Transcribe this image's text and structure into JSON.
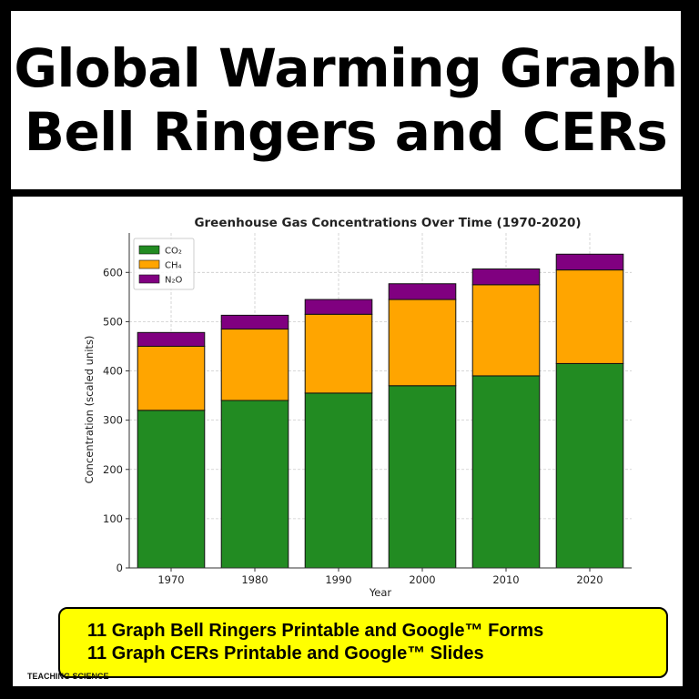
{
  "header": {
    "title_line1": "Global Warming Graph",
    "title_line2": "Bell Ringers and CERs"
  },
  "chart_data": {
    "type": "bar",
    "stacked": true,
    "title": "Greenhouse Gas Concentrations Over Time (1970-2020)",
    "xlabel": "Year",
    "ylabel": "Concentration (scaled units)",
    "categories": [
      "1970",
      "1980",
      "1990",
      "2000",
      "2010",
      "2020"
    ],
    "series": [
      {
        "name": "CO₂",
        "color": "#228b22",
        "values": [
          320,
          340,
          355,
          370,
          390,
          415
        ]
      },
      {
        "name": "CH₄",
        "color": "#ffa500",
        "values": [
          130,
          145,
          160,
          175,
          185,
          190
        ]
      },
      {
        "name": "N₂O",
        "color": "#800080",
        "values": [
          28,
          28,
          30,
          32,
          32,
          32
        ]
      }
    ],
    "ylim": [
      0,
      680
    ],
    "yticks": [
      0,
      100,
      200,
      300,
      400,
      500,
      600
    ],
    "grid": true,
    "legend_position": "top-left"
  },
  "banner": {
    "line1": "11 Graph Bell Ringers Printable and Google™ Forms",
    "line2": "11 Graph CERs Printable and Google™ Slides"
  },
  "brand": {
    "text": "TEACHING SCIENCE"
  }
}
